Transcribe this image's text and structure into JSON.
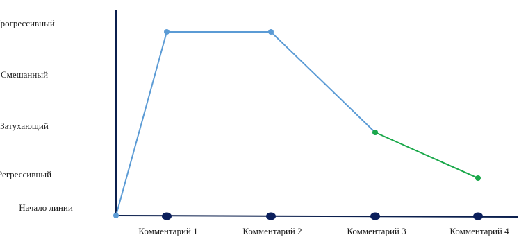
{
  "chart_data": {
    "type": "line",
    "title": "",
    "xlabel": "",
    "ylabel": "",
    "y_categories": [
      "Начало линии",
      "Регрессивный",
      "Затухающий",
      "Смешанный",
      "Прогрессивный"
    ],
    "categories": [
      "Комментарий 1",
      "Комментарий 2",
      "Комментарий 3",
      "Комментарий 4"
    ],
    "series": [
      {
        "color": "#5b9bd5",
        "points": [
          {
            "x": "",
            "y": "Начало линии"
          },
          {
            "x": "Комментарий 1",
            "y": "Прогрессивный"
          },
          {
            "x": "Комментарий 2",
            "y": "Прогрессивный"
          },
          {
            "x": "Комментарий 3",
            "y": "Затухающий"
          }
        ]
      },
      {
        "color": "#1aa84a",
        "points": [
          {
            "x": "Комментарий 3",
            "y": "Затухающий"
          },
          {
            "x": "Комментарий 4",
            "y": "Регрессивный"
          }
        ]
      }
    ],
    "x_markers_color": "#0b1f5c",
    "axis_color": "#0b1f4d",
    "grid": false,
    "legend": "none"
  }
}
